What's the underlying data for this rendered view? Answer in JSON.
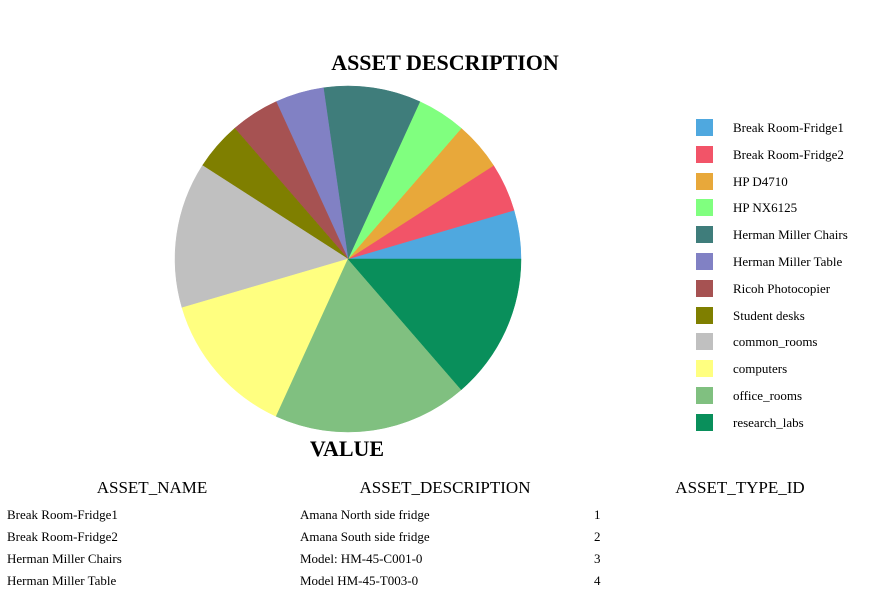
{
  "chart_data": {
    "type": "pie",
    "title": "ASSET DESCRIPTION",
    "xlabel": "VALUE",
    "categories": [
      "Break Room-Fridge1",
      "Break Room-Fridge2",
      "HP D4710",
      "HP NX6125",
      "Herman Miller Chairs",
      "Herman Miller Table",
      "Ricoh Photocopier",
      "Student desks",
      "common_rooms",
      "computers",
      "office_rooms",
      "research_labs"
    ],
    "values": [
      1,
      1,
      1,
      1,
      2,
      1,
      1,
      1,
      3,
      3,
      4,
      3
    ],
    "colors": [
      "#4FA8DF",
      "#F25468",
      "#E8A83A",
      "#80FF7F",
      "#3F7D7B",
      "#8181C4",
      "#A65252",
      "#7F7F00",
      "#C0C0C0",
      "#FFFF80",
      "#80C080",
      "#098F5B"
    ],
    "legend": "right"
  },
  "table": {
    "headers": [
      "ASSET_NAME",
      "ASSET_DESCRIPTION",
      "ASSET_TYPE_ID"
    ],
    "rows": [
      [
        "Break Room-Fridge1",
        "Amana North side fridge",
        "1"
      ],
      [
        "Break Room-Fridge2",
        "Amana South side fridge",
        "2"
      ],
      [
        "Herman Miller Chairs",
        "Model: HM-45-C001-0",
        "3"
      ],
      [
        "Herman Miller Table",
        "Model HM-45-T003-0",
        "4"
      ]
    ]
  }
}
